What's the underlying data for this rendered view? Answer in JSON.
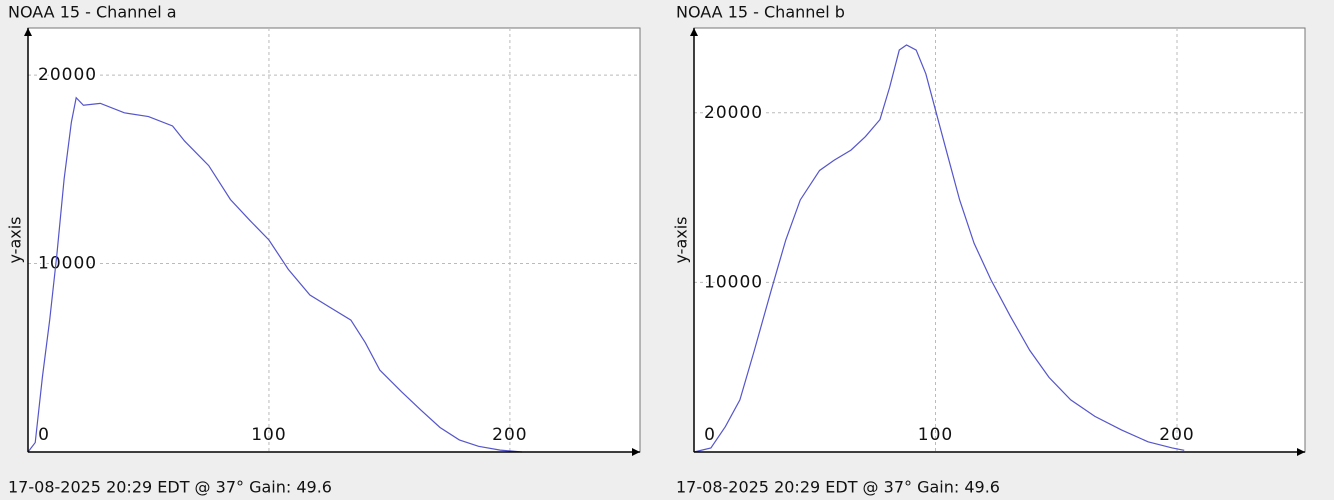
{
  "chart_data": [
    {
      "type": "line",
      "title": "NOAA 15 - Channel a",
      "ylabel": "y-axis",
      "caption": "17-08-2025 20:29 EDT @ 37° Gain: 49.6",
      "xlim": [
        0,
        254
      ],
      "ylim": [
        0,
        22500
      ],
      "xticks": [
        0,
        100,
        200
      ],
      "yticks": [
        10000,
        20000
      ],
      "grid": true,
      "x": [
        0,
        3,
        6,
        9,
        12,
        15,
        18,
        20,
        23,
        30,
        40,
        50,
        60,
        65,
        75,
        84,
        92,
        100,
        108,
        117,
        125,
        134,
        140,
        146,
        155,
        163,
        171,
        179,
        187,
        196,
        205
      ],
      "series": [
        {
          "color": "#5555cc",
          "values": [
            0,
            500,
            4000,
            7000,
            10500,
            14500,
            17500,
            18800,
            18400,
            18500,
            18000,
            17800,
            17300,
            16500,
            15200,
            13400,
            12300,
            11250,
            9700,
            8330,
            7700,
            7000,
            5800,
            4350,
            3200,
            2230,
            1300,
            640,
            300,
            100,
            0
          ]
        }
      ]
    },
    {
      "type": "line",
      "title": "NOAA 15 - Channel b",
      "ylabel": "y-axis",
      "caption": "17-08-2025 20:29 EDT @ 37° Gain: 49.6",
      "xlim": [
        0,
        253
      ],
      "ylim": [
        0,
        25000
      ],
      "xticks": [
        0,
        100,
        200
      ],
      "yticks": [
        10000,
        20000
      ],
      "grid": true,
      "x": [
        0,
        7,
        13,
        19,
        25,
        32,
        38,
        44,
        52,
        58,
        65,
        71,
        77,
        81,
        85,
        88,
        92,
        96,
        100,
        105,
        110,
        116,
        123,
        131,
        139,
        147,
        156,
        166,
        177,
        188,
        198,
        203
      ],
      "series": [
        {
          "color": "#5555cc",
          "values": [
            0,
            240,
            1500,
            3070,
            6000,
            9550,
            12500,
            14860,
            16600,
            17200,
            17800,
            18600,
            19600,
            21500,
            23700,
            24000,
            23700,
            22300,
            20160,
            17500,
            14860,
            12300,
            10140,
            8000,
            6000,
            4400,
            3070,
            2100,
            1300,
            600,
            240,
            100
          ]
        }
      ]
    }
  ]
}
